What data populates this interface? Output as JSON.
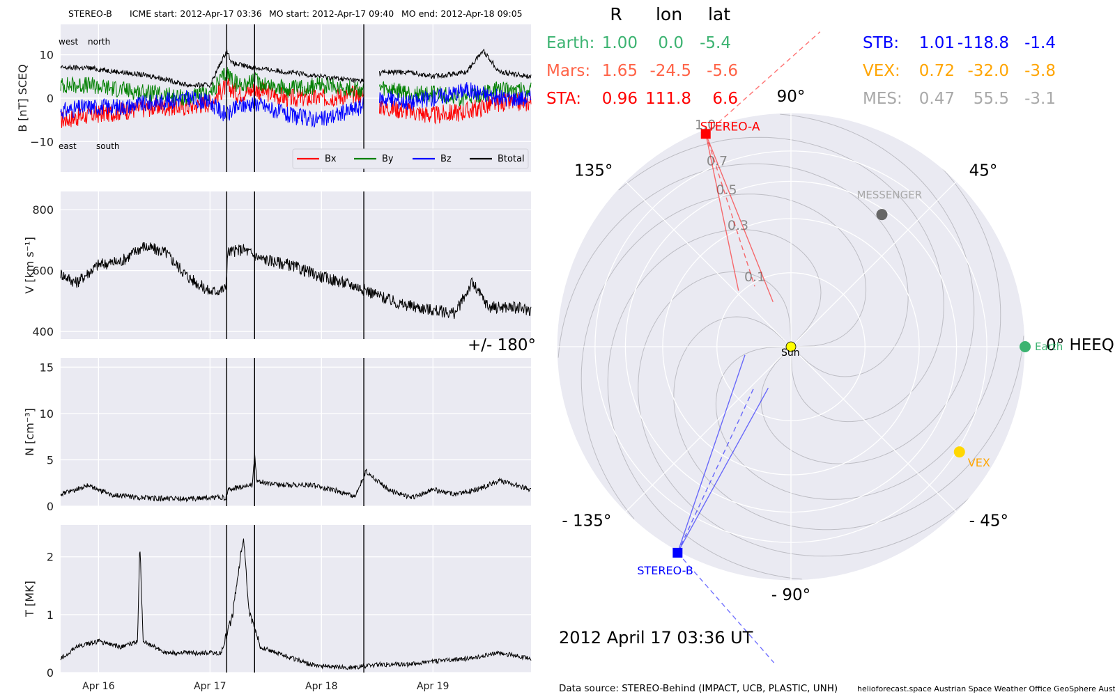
{
  "header": {
    "spacecraft": "STEREO-B",
    "icme_start": "ICME start: 2012-Apr-17 03:36",
    "mo_start": "MO start: 2012-Apr-17 09:40",
    "mo_end": "MO end: 2012-Apr-18 09:05"
  },
  "positions_table": {
    "headers": [
      "R",
      "lon",
      "lat"
    ],
    "rows": [
      {
        "name": "Earth:",
        "r": "1.00",
        "lon": "0.0",
        "lat": "-5.4",
        "color": "#3cb371"
      },
      {
        "name": "Mars:",
        "r": "1.65",
        "lon": "-24.5",
        "lat": "-5.6",
        "color": "#ff6347"
      },
      {
        "name": "STA:",
        "r": "0.96",
        "lon": "111.8",
        "lat": "6.6",
        "color": "#ff0000"
      },
      {
        "name": "STB:",
        "r": "1.01",
        "lon": "-118.8",
        "lat": "-1.4",
        "color": "#0000ff"
      },
      {
        "name": "VEX:",
        "r": "0.72",
        "lon": "-32.0",
        "lat": "-3.8",
        "color": "#ffa500"
      },
      {
        "name": "MES:",
        "r": "0.47",
        "lon": "55.5",
        "lat": "-3.1",
        "color": "#a9a9a9"
      }
    ]
  },
  "polar": {
    "angle_labels": [
      "90°",
      "45°",
      "0° HEEQ",
      "- 45°",
      "- 90°",
      "- 135°",
      "+/- 180°",
      "135°"
    ],
    "radial_labels": [
      "0.1",
      "0.3",
      "0.5",
      "0.7",
      "1.0"
    ],
    "bodies": [
      {
        "label": "STEREO-A",
        "r": 0.96,
        "lon": 111.8,
        "color": "#ff0000",
        "marker": "square",
        "label_color": "#ff0000"
      },
      {
        "label": "STEREO-B",
        "r": 1.01,
        "lon": -118.8,
        "color": "#0000ff",
        "marker": "square",
        "label_color": "#0000ff"
      },
      {
        "label": "Earth",
        "r": 1.0,
        "lon": 0.0,
        "color": "#3cb371",
        "marker": "circle",
        "label_color": "#3cb371"
      },
      {
        "label": "VEX",
        "r": 0.72,
        "lon": -32.0,
        "color": "#ffd700",
        "marker": "circle",
        "label_color": "#ffa500"
      },
      {
        "label": "MESSENGER",
        "r": 0.47,
        "lon": 55.5,
        "color": "#666666",
        "marker": "circle",
        "label_color": "#a9a9a9"
      },
      {
        "label": "Sun",
        "r": 0,
        "lon": 0,
        "color": "#ffff00",
        "marker": "sun",
        "label_color": "#000000"
      }
    ],
    "date_text": "2012 April 17  03:36 UT"
  },
  "footer": {
    "source": "Data source: STEREO-Behind (IMPACT, UCB, PLASTIC, UNH)",
    "credits": "helioforecast.space   Austrian Space Weather Office   GeoSphere Austria"
  },
  "chart_data": [
    {
      "type": "line",
      "title": "",
      "ylabel": "B [nT] SCEQ",
      "ylim": [
        -17,
        17
      ],
      "yticks": [
        -10,
        0,
        10
      ],
      "xlabels": [
        "Apr 16",
        "Apr 17",
        "Apr 18",
        "Apr 19"
      ],
      "x_days": [
        16,
        17,
        18,
        19
      ],
      "xlim_days": [
        15.66,
        19.88
      ],
      "annotations": [
        "west",
        "north",
        "east",
        "south"
      ],
      "event_lines_days": [
        17.15,
        17.4,
        18.38
      ],
      "data_gap_days": [
        18.38,
        18.52
      ],
      "series": [
        {
          "name": "Bx",
          "color": "#ff0000",
          "x": [
            15.66,
            15.9,
            16.2,
            16.5,
            16.8,
            17.0,
            17.15,
            17.25,
            17.4,
            17.7,
            18.0,
            18.35,
            18.55,
            18.8,
            19.0,
            19.3,
            19.6,
            19.88
          ],
          "y": [
            -5,
            -4,
            -3,
            -2,
            -2,
            -1,
            3,
            1,
            2,
            0,
            0,
            1,
            -2,
            -3,
            -4,
            -3,
            -1,
            -1
          ]
        },
        {
          "name": "By",
          "color": "#008000",
          "x": [
            15.66,
            15.9,
            16.2,
            16.5,
            16.8,
            17.0,
            17.15,
            17.25,
            17.4,
            17.7,
            18.0,
            18.35,
            18.55,
            18.8,
            19.0,
            19.3,
            19.6,
            19.88
          ],
          "y": [
            3,
            3,
            2,
            1,
            0,
            1,
            6,
            3,
            4,
            2,
            3,
            2,
            2,
            1,
            1,
            0,
            2,
            2
          ]
        },
        {
          "name": "Bz",
          "color": "#0000ff",
          "x": [
            15.66,
            15.9,
            16.2,
            16.5,
            16.8,
            17.0,
            17.15,
            17.25,
            17.4,
            17.7,
            18.0,
            18.35,
            18.55,
            18.8,
            19.0,
            19.3,
            19.6,
            19.88
          ],
          "y": [
            -3,
            -2,
            -2,
            -1,
            0,
            -1,
            -4,
            -2,
            -1,
            -4,
            -5,
            -2,
            0,
            -1,
            0,
            2,
            0,
            0
          ]
        },
        {
          "name": "Btotal",
          "color": "#000000",
          "x": [
            15.66,
            15.9,
            16.2,
            16.5,
            16.8,
            17.0,
            17.15,
            17.2,
            17.4,
            17.7,
            18.0,
            18.35,
            18.55,
            18.8,
            19.0,
            19.3,
            19.45,
            19.6,
            19.88
          ],
          "y": [
            7,
            7,
            6,
            5,
            3,
            3,
            11,
            8,
            7,
            6,
            5,
            4,
            6,
            6,
            5,
            6,
            11,
            6,
            5
          ]
        }
      ]
    },
    {
      "type": "line",
      "ylabel": "V [km s⁻¹]",
      "ylim": [
        375,
        860
      ],
      "yticks": [
        400,
        600,
        800
      ],
      "event_lines_days": [
        17.15,
        17.4,
        18.38
      ],
      "series": [
        {
          "name": "",
          "color": "#000000",
          "x": [
            15.66,
            15.8,
            16.0,
            16.2,
            16.4,
            16.6,
            16.8,
            17.0,
            17.14,
            17.16,
            17.3,
            17.45,
            17.7,
            18.0,
            18.3,
            18.5,
            18.7,
            19.0,
            19.2,
            19.35,
            19.5,
            19.7,
            19.88
          ],
          "y": [
            590,
            560,
            620,
            630,
            680,
            660,
            580,
            530,
            540,
            660,
            670,
            640,
            620,
            580,
            550,
            520,
            490,
            470,
            460,
            560,
            480,
            480,
            470
          ]
        }
      ]
    },
    {
      "type": "line",
      "ylabel": "N [cm⁻³]",
      "ylim": [
        0,
        16
      ],
      "yticks": [
        0,
        5,
        10,
        15
      ],
      "event_lines_days": [
        17.15,
        17.4,
        18.38
      ],
      "series": [
        {
          "name": "",
          "color": "#000000",
          "x": [
            15.66,
            15.8,
            15.9,
            16.1,
            16.4,
            16.8,
            17.1,
            17.14,
            17.16,
            17.38,
            17.4,
            17.42,
            17.6,
            17.9,
            18.1,
            18.3,
            18.4,
            18.6,
            18.8,
            19.0,
            19.2,
            19.4,
            19.6,
            19.88
          ],
          "y": [
            1.0,
            1.5,
            2.0,
            1.0,
            0.6,
            0.5,
            0.7,
            0.5,
            1.5,
            2.0,
            5.5,
            2.5,
            2.0,
            2.0,
            1.5,
            0.8,
            3.5,
            1.5,
            0.6,
            1.5,
            1.0,
            1.5,
            2.5,
            1.5
          ]
        }
      ]
    },
    {
      "type": "line",
      "ylabel": "T [MK]",
      "ylim": [
        0,
        2.55
      ],
      "yticks": [
        0,
        1,
        2
      ],
      "xlabels": [
        "Apr 16",
        "Apr 17",
        "Apr 18",
        "Apr 19"
      ],
      "event_lines_days": [
        17.15,
        17.4,
        18.38
      ],
      "series": [
        {
          "name": "",
          "color": "#000000",
          "x": [
            15.66,
            15.8,
            16.0,
            16.2,
            16.35,
            16.37,
            16.4,
            16.6,
            16.9,
            17.1,
            17.2,
            17.3,
            17.35,
            17.45,
            17.6,
            17.9,
            18.1,
            18.3,
            18.5,
            18.8,
            19.0,
            19.3,
            19.6,
            19.88
          ],
          "y": [
            0.2,
            0.4,
            0.5,
            0.4,
            0.5,
            2.2,
            0.5,
            0.3,
            0.3,
            0.3,
            0.9,
            2.3,
            1.0,
            0.4,
            0.3,
            0.1,
            0.05,
            0.05,
            0.1,
            0.1,
            0.15,
            0.2,
            0.3,
            0.2
          ]
        }
      ]
    }
  ]
}
